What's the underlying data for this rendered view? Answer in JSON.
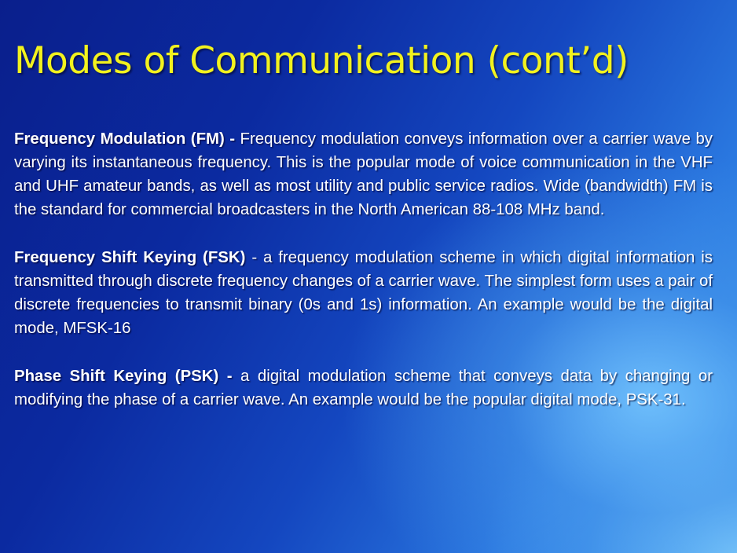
{
  "slide": {
    "title": "Modes of Communication (cont’d)",
    "paragraphs": [
      {
        "term": "Frequency Modulation (FM) -",
        "text": " Frequency modulation conveys information over a  carrier wave by varying its instantaneous frequency.  This is the popular mode of voice communication in the VHF and UHF amateur bands, as well as most utility and public service radios.  Wide (bandwidth) FM is the standard for commercial broadcasters in the North American 88-108 MHz band."
      },
      {
        "term": "Frequency Shift Keying (FSK)",
        "text": " - a frequency modulation scheme in which digital information is transmitted through discrete frequency changes of a carrier wave. The simplest form uses a pair of discrete frequencies to transmit binary (0s and 1s) information.  An example would be the digital mode, MFSK-16"
      },
      {
        "term": "Phase Shift Keying (PSK) -",
        "text": " a digital modulation scheme that conveys data by changing or modifying the phase of a carrier wave.  An example would be the popular digital mode, PSK-31."
      }
    ]
  }
}
